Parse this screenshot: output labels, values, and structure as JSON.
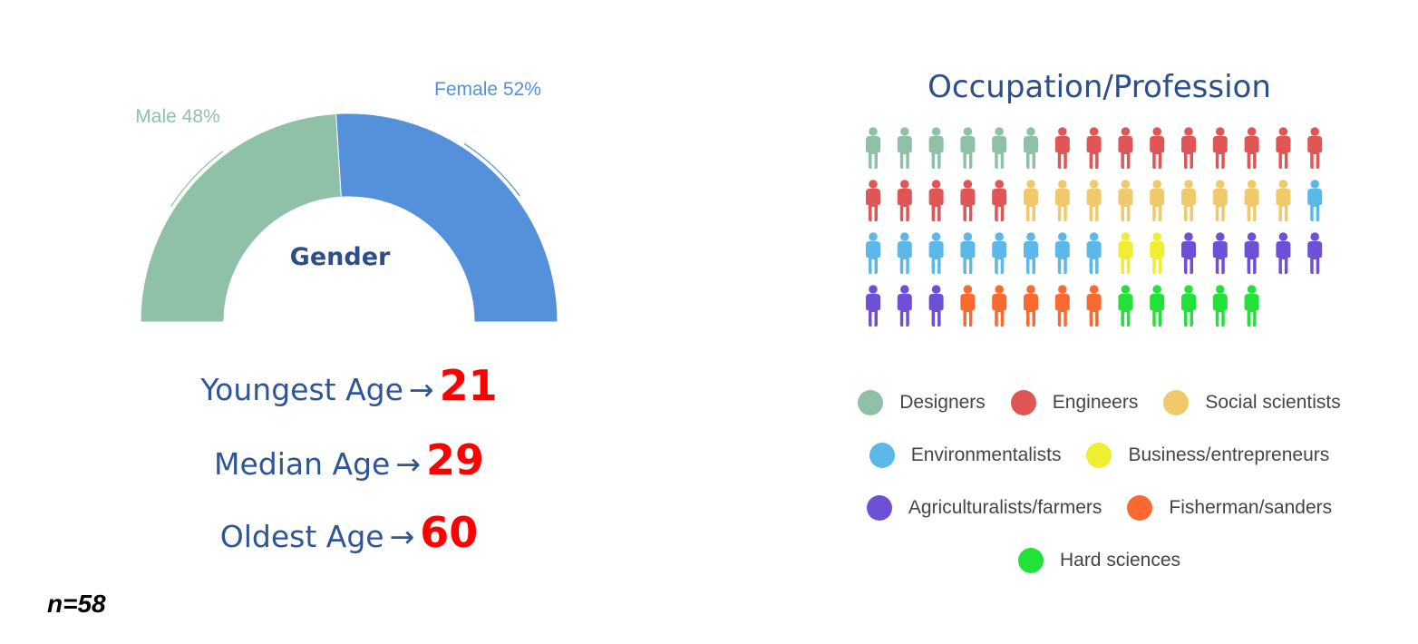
{
  "gender": {
    "title": "Gender",
    "slices": [
      {
        "name": "Male",
        "label": "Male 48%",
        "value": 48,
        "color": "#8fc1a9"
      },
      {
        "name": "Female",
        "label": "Female 52%",
        "value": 52,
        "color": "#5591da"
      }
    ]
  },
  "ages": [
    {
      "label": "Youngest Age",
      "arrow": "→",
      "value": "21"
    },
    {
      "label": "Median Age",
      "arrow": "→",
      "value": "29"
    },
    {
      "label": "Oldest Age",
      "arrow": "→",
      "value": "60"
    }
  ],
  "sample": "n=58",
  "chart_data": [
    {
      "type": "pie",
      "variant": "semi-donut",
      "title": "Gender",
      "categories": [
        "Male",
        "Female"
      ],
      "values": [
        48,
        52
      ],
      "unit": "%",
      "colors": [
        "#8fc1a9",
        "#5591da"
      ]
    },
    {
      "type": "pictogram",
      "title": "Occupation/Profession",
      "icon": "person-icon",
      "icons_per_row": 15,
      "categories": [
        "Designers",
        "Engineers",
        "Social scientists",
        "Environmentalists",
        "Business/entrepreneurs",
        "Agriculturalists/farmers",
        "Fisherman/sanders",
        "Hard sciences"
      ],
      "values": [
        6,
        14,
        9,
        9,
        2,
        8,
        5,
        5
      ],
      "colors": [
        "#8fc1a9",
        "#e05555",
        "#f0c96a",
        "#5bb8e8",
        "#eeee33",
        "#6e50d8",
        "#fa6a30",
        "#22e23a"
      ],
      "legend": "bottom"
    }
  ],
  "occupation": {
    "title": "Occupation/Profession",
    "legend_rows": [
      [
        0,
        1,
        2
      ],
      [
        3,
        4
      ],
      [
        5,
        6
      ],
      [
        7
      ]
    ]
  }
}
